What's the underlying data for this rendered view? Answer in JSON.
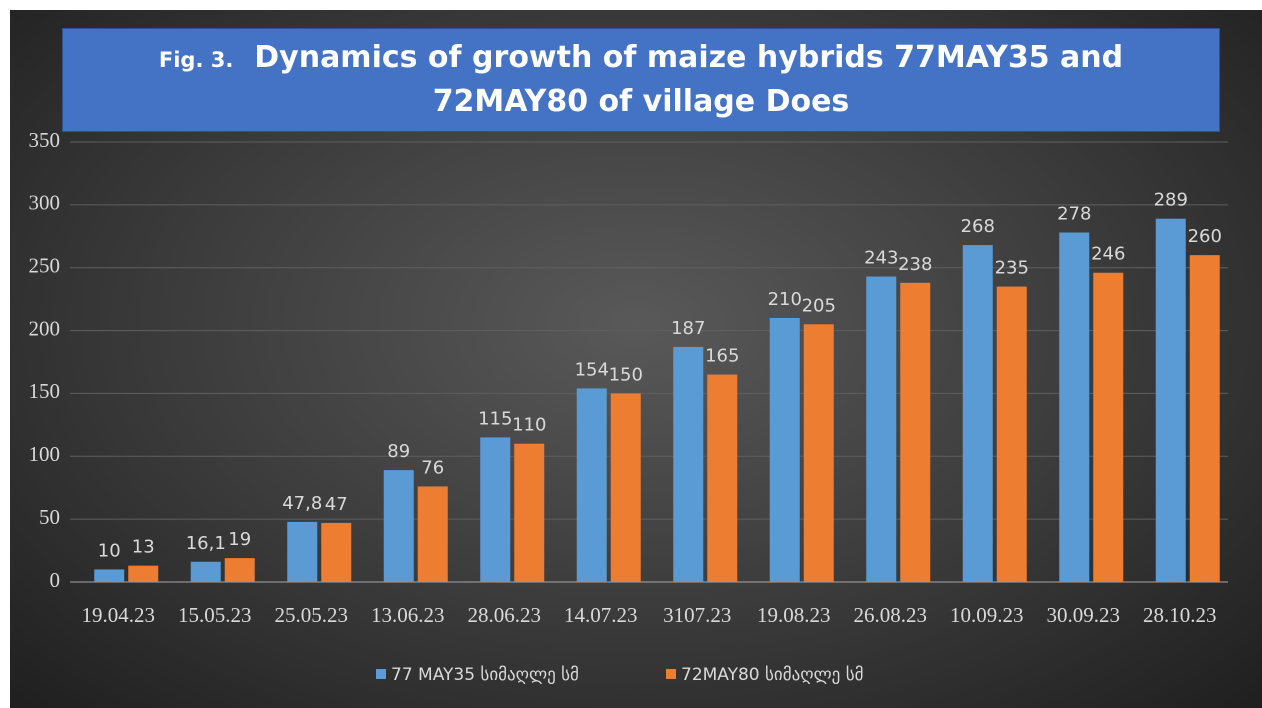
{
  "chart_data": {
    "type": "bar",
    "figure_label": "Fig. 3.",
    "title": "Dynamics of growth of maize hybrids 77MAY35 and 72MAY80 of village Does",
    "categories": [
      "19.04.23",
      "15.05.23",
      "25.05.23",
      "13.06.23",
      "28.06.23",
      "14.07.23",
      "3107.23",
      "19.08.23",
      "26.08.23",
      "10.09.23",
      "30.09.23",
      "28.10.23"
    ],
    "series": [
      {
        "name": "77 MAY35 სიმაღლე სმ",
        "color": "#5b9bd5",
        "values": [
          10,
          16.1,
          47.8,
          89,
          115,
          154,
          187,
          210,
          243,
          268,
          278,
          289
        ],
        "value_labels": [
          "10",
          "16,1",
          "47,8",
          "89",
          "115",
          "154",
          "187",
          "210",
          "243",
          "268",
          "278",
          "289"
        ]
      },
      {
        "name": "72MAY80 სიმაღლე სმ",
        "color": "#ed7d31",
        "values": [
          13,
          19,
          47,
          76,
          110,
          150,
          165,
          205,
          238,
          235,
          246,
          260
        ],
        "value_labels": [
          "13",
          "19",
          "47",
          "76",
          "110",
          "150",
          "165",
          "205",
          "238",
          "235",
          "246",
          "260"
        ]
      }
    ],
    "ylim": [
      0,
      350
    ],
    "yticks": [
      0,
      50,
      100,
      150,
      200,
      250,
      300,
      350
    ],
    "grid": true,
    "legend": "bottom"
  }
}
